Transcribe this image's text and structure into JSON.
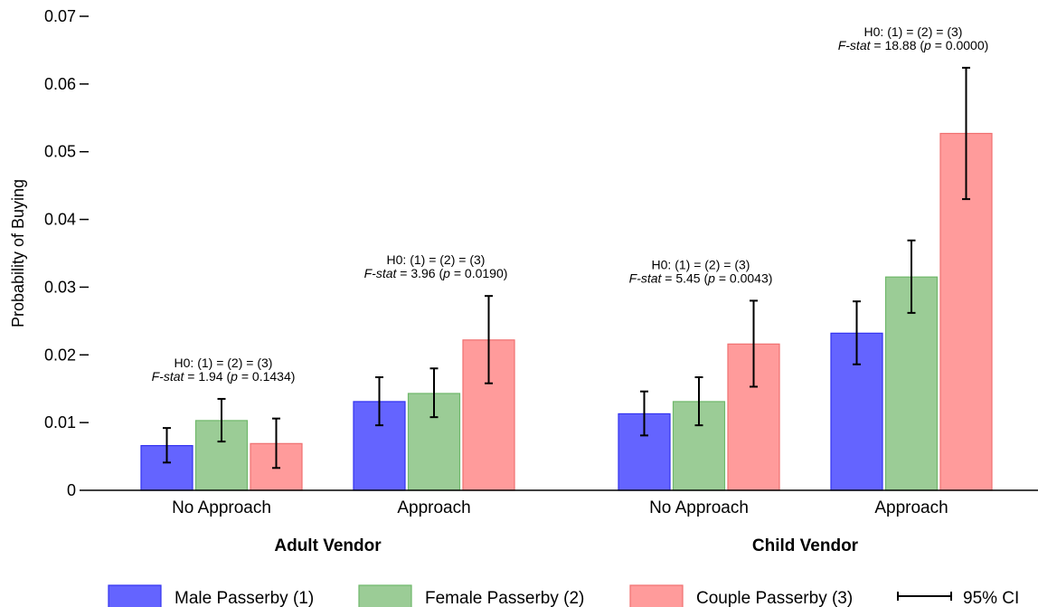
{
  "chart_data": {
    "type": "bar",
    "ylabel": "Probability of Buying",
    "ylim": [
      0,
      0.07
    ],
    "yticks": [
      {
        "value": 0,
        "label": "0"
      },
      {
        "value": 0.01,
        "label": "0.01"
      },
      {
        "value": 0.02,
        "label": "0.02"
      },
      {
        "value": 0.03,
        "label": "0.03"
      },
      {
        "value": 0.04,
        "label": "0.04"
      },
      {
        "value": 0.05,
        "label": "0.05"
      },
      {
        "value": 0.06,
        "label": "0.06"
      },
      {
        "value": 0.07,
        "label": "0.07"
      }
    ],
    "grid": false,
    "groups": [
      {
        "label": "Adult Vendor",
        "categories": [
          "No Approach",
          "Approach"
        ]
      },
      {
        "label": "Child Vendor",
        "categories": [
          "No Approach",
          "Approach"
        ]
      }
    ],
    "categories": [
      "No Approach",
      "Approach",
      "No Approach",
      "Approach"
    ],
    "series": [
      {
        "name": "Male Passerby (1)",
        "color": "#6464ff",
        "values": [
          0.0066,
          0.0131,
          0.0113,
          0.0232
        ],
        "ci_low": [
          0.0041,
          0.0096,
          0.0081,
          0.0186
        ],
        "ci_high": [
          0.0092,
          0.0167,
          0.0146,
          0.0279
        ]
      },
      {
        "name": "Female Passerby (2)",
        "color": "#9bcc96",
        "values": [
          0.0103,
          0.0143,
          0.0131,
          0.0315
        ],
        "ci_low": [
          0.0072,
          0.0108,
          0.0096,
          0.0262
        ],
        "ci_high": [
          0.0135,
          0.018,
          0.0167,
          0.0369
        ]
      },
      {
        "name": "Couple Passerby (3)",
        "color": "#ff9b9b",
        "values": [
          0.0069,
          0.0222,
          0.0216,
          0.0527
        ],
        "ci_low": [
          0.0033,
          0.0158,
          0.0153,
          0.043
        ],
        "ci_high": [
          0.0106,
          0.0287,
          0.028,
          0.0624
        ]
      }
    ],
    "annotations": [
      {
        "line1": "H0: (1) = (2) = (3)",
        "stat_label": "F-stat",
        "stat_rest": " = 1.94 (",
        "p_label": "p",
        "p_rest": " = 0.1434)"
      },
      {
        "line1": "H0: (1) = (2) = (3)",
        "stat_label": "F-stat",
        "stat_rest": " = 3.96 (",
        "p_label": "p",
        "p_rest": " = 0.0190)"
      },
      {
        "line1": "H0: (1) = (2) = (3)",
        "stat_label": "F-stat",
        "stat_rest": " = 5.45 (",
        "p_label": "p",
        "p_rest": " = 0.0043)"
      },
      {
        "line1": "H0: (1) = (2) = (3)",
        "stat_label": "F-stat",
        "stat_rest": " = 18.88 (",
        "p_label": "p",
        "p_rest": " = 0.0000)"
      }
    ],
    "ci_legend_label": "95% CI",
    "legend_position": "bottom"
  }
}
